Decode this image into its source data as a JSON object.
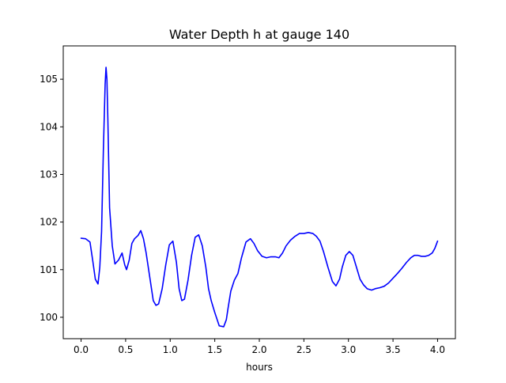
{
  "chart_data": {
    "type": "line",
    "title": "Water Depth h at gauge 140",
    "xlabel": "hours",
    "ylabel": "",
    "xlim": [
      -0.2,
      4.2
    ],
    "ylim": [
      99.55,
      105.7
    ],
    "xticks": [
      0.0,
      0.5,
      1.0,
      1.5,
      2.0,
      2.5,
      3.0,
      3.5,
      4.0
    ],
    "xtick_labels": [
      "0.0",
      "0.5",
      "1.0",
      "1.5",
      "2.0",
      "2.5",
      "3.0",
      "3.5",
      "4.0"
    ],
    "yticks": [
      100,
      101,
      102,
      103,
      104,
      105
    ],
    "ytick_labels": [
      "100",
      "101",
      "102",
      "103",
      "104",
      "105"
    ],
    "grid": false,
    "series": [
      {
        "color": "#0000ff",
        "x": [
          0.0,
          0.05,
          0.1,
          0.13,
          0.16,
          0.19,
          0.21,
          0.23,
          0.25,
          0.27,
          0.28,
          0.29,
          0.3,
          0.32,
          0.35,
          0.38,
          0.42,
          0.46,
          0.49,
          0.51,
          0.54,
          0.57,
          0.6,
          0.64,
          0.67,
          0.7,
          0.73,
          0.77,
          0.81,
          0.84,
          0.87,
          0.91,
          0.95,
          0.99,
          1.03,
          1.07,
          1.1,
          1.13,
          1.16,
          1.2,
          1.24,
          1.28,
          1.32,
          1.36,
          1.4,
          1.43,
          1.46,
          1.5,
          1.55,
          1.6,
          1.63,
          1.65,
          1.68,
          1.72,
          1.76,
          1.8,
          1.85,
          1.9,
          1.94,
          1.98,
          2.03,
          2.08,
          2.13,
          2.18,
          2.22,
          2.26,
          2.3,
          2.35,
          2.4,
          2.45,
          2.5,
          2.55,
          2.6,
          2.64,
          2.68,
          2.72,
          2.77,
          2.82,
          2.86,
          2.9,
          2.93,
          2.97,
          3.01,
          3.05,
          3.09,
          3.13,
          3.17,
          3.21,
          3.26,
          3.3,
          3.35,
          3.4,
          3.45,
          3.5,
          3.55,
          3.6,
          3.65,
          3.7,
          3.74,
          3.78,
          3.82,
          3.86,
          3.9,
          3.94,
          3.97,
          4.0
        ],
        "y": [
          101.66,
          101.65,
          101.58,
          101.2,
          100.8,
          100.7,
          101.05,
          101.8,
          103.5,
          104.9,
          105.25,
          105.0,
          104.2,
          102.3,
          101.5,
          101.12,
          101.2,
          101.35,
          101.1,
          101.0,
          101.2,
          101.55,
          101.65,
          101.72,
          101.82,
          101.65,
          101.35,
          100.85,
          100.35,
          100.25,
          100.28,
          100.6,
          101.1,
          101.52,
          101.6,
          101.15,
          100.6,
          100.35,
          100.38,
          100.78,
          101.3,
          101.68,
          101.73,
          101.5,
          101.05,
          100.6,
          100.35,
          100.1,
          99.82,
          99.8,
          99.95,
          100.2,
          100.55,
          100.78,
          100.92,
          101.25,
          101.58,
          101.65,
          101.55,
          101.4,
          101.28,
          101.25,
          101.27,
          101.27,
          101.25,
          101.35,
          101.5,
          101.62,
          101.7,
          101.76,
          101.76,
          101.78,
          101.76,
          101.7,
          101.6,
          101.38,
          101.05,
          100.75,
          100.66,
          100.8,
          101.05,
          101.3,
          101.38,
          101.3,
          101.05,
          100.8,
          100.68,
          100.6,
          100.57,
          100.6,
          100.62,
          100.65,
          100.72,
          100.82,
          100.92,
          101.03,
          101.15,
          101.25,
          101.3,
          101.3,
          101.28,
          101.28,
          101.3,
          101.35,
          101.45,
          101.6
        ]
      }
    ]
  }
}
